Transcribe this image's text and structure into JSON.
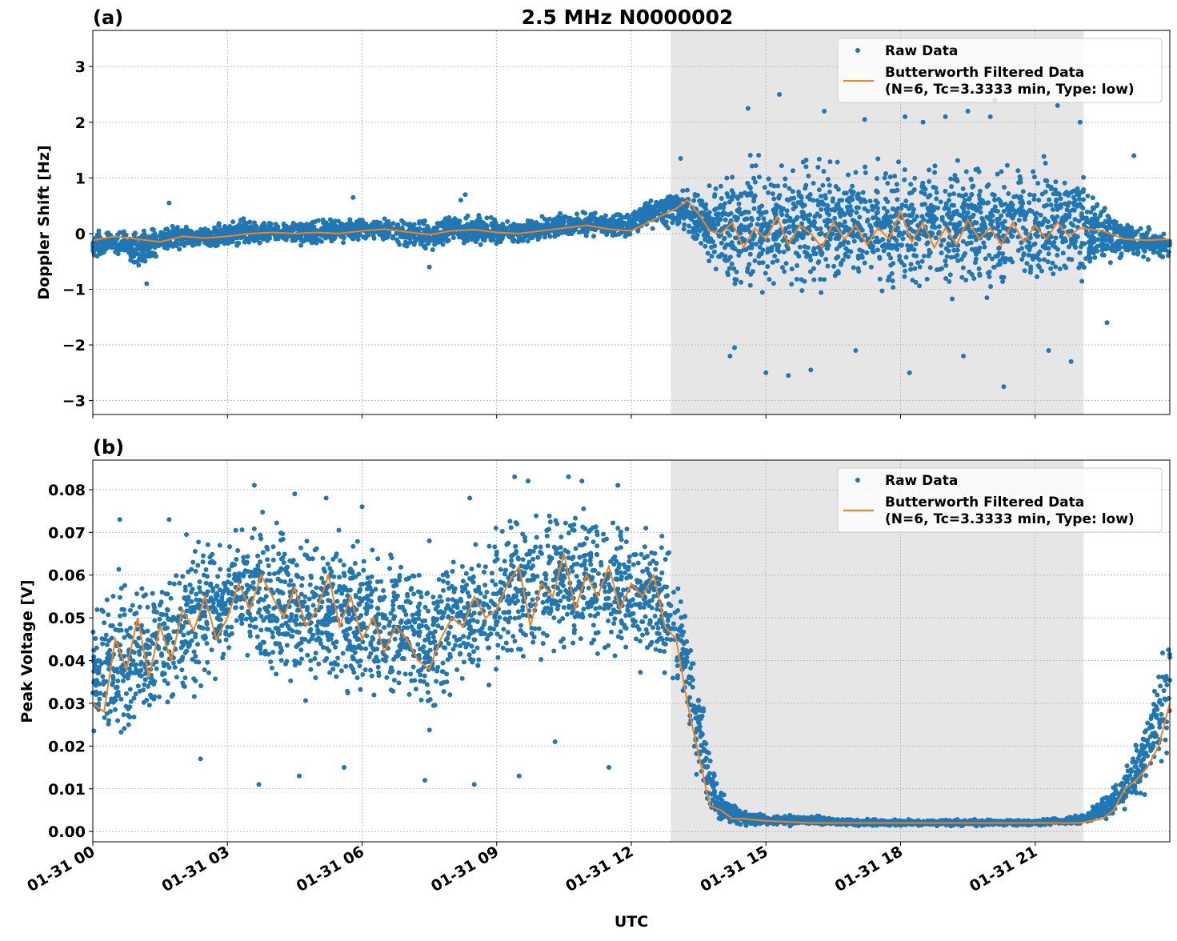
{
  "chart_data": [
    {
      "type": "scatter+line",
      "panel_label": "(a)",
      "title": "2.5 MHz N0000002",
      "xlabel": "",
      "ylabel": "Doppler Shift [Hz]",
      "x_unit": "hours since 01-31 00 UTC",
      "xlim": [
        0,
        24
      ],
      "ylim": [
        -3.25,
        3.65
      ],
      "yticks": [
        -3,
        -2,
        -1,
        0,
        1,
        2,
        3
      ],
      "ytick_labels": [
        "−3",
        "−2",
        "−1",
        "0",
        "1",
        "2",
        "3"
      ],
      "grid": true,
      "legend_position": "top-right",
      "shaded_span": [
        12.88,
        22.08
      ],
      "legend": [
        "Raw Data",
        "Butterworth Filtered Data",
        "(N=6, Tc=3.3333 min, Type: low)"
      ],
      "raw_envelope": {
        "x": [
          0,
          0.5,
          1,
          1.5,
          2,
          2.5,
          3,
          3.5,
          4,
          4.5,
          5,
          5.5,
          6,
          6.5,
          7,
          7.5,
          8,
          8.5,
          9,
          9.5,
          10,
          10.5,
          11,
          11.5,
          12,
          12.5,
          13,
          13.5,
          14,
          14.5,
          15,
          16,
          17,
          18,
          19,
          20,
          21,
          22,
          22.5,
          23,
          23.5,
          24
        ],
        "lower": [
          -0.5,
          -0.4,
          -0.7,
          -0.4,
          -0.3,
          -0.3,
          -0.3,
          -0.25,
          -0.2,
          -0.25,
          -0.25,
          -0.2,
          -0.2,
          -0.2,
          -0.3,
          -0.4,
          -0.2,
          -0.25,
          -0.25,
          -0.2,
          -0.15,
          -0.1,
          -0.1,
          -0.1,
          -0.1,
          0.05,
          0.05,
          -0.3,
          -1.1,
          -1.3,
          -1.3,
          -1.3,
          -1.3,
          -1.4,
          -1.3,
          -1.4,
          -1.2,
          -1.1,
          -0.6,
          -0.5,
          -0.5,
          -0.5
        ],
        "upper": [
          0.1,
          0.1,
          0.1,
          0.15,
          0.2,
          0.2,
          0.25,
          0.3,
          0.3,
          0.3,
          0.3,
          0.3,
          0.35,
          0.35,
          0.3,
          0.25,
          0.4,
          0.4,
          0.3,
          0.3,
          0.35,
          0.4,
          0.45,
          0.4,
          0.45,
          0.7,
          0.85,
          0.9,
          1.3,
          1.5,
          1.6,
          1.6,
          1.6,
          1.65,
          1.6,
          1.6,
          1.6,
          1.4,
          0.6,
          0.3,
          0.2,
          0.1
        ]
      },
      "raw_outliers": {
        "x": [
          1.7,
          5.8,
          7.5,
          8.2,
          8.3,
          14.6,
          15.3,
          16.3,
          17.2,
          17.7,
          18.1,
          18.5,
          19.0,
          19.5,
          20.0,
          20.1,
          21.5,
          22.0,
          14.2,
          15.0,
          16.0,
          17.0,
          18.2,
          19.4,
          20.3,
          21.8,
          22.6,
          23.2,
          1.2,
          13.1,
          14.3,
          15.5,
          21.3
        ],
        "y": [
          0.55,
          0.65,
          -0.6,
          0.6,
          0.7,
          2.25,
          2.5,
          2.2,
          2.05,
          2.6,
          2.1,
          2.0,
          2.1,
          2.2,
          2.1,
          2.4,
          2.3,
          2.0,
          -2.2,
          -2.5,
          -2.45,
          -2.1,
          -2.5,
          -2.2,
          -2.75,
          -2.3,
          -1.6,
          1.4,
          -0.9,
          1.35,
          -2.05,
          -2.55,
          -2.1
        ]
      },
      "filtered": {
        "x": [
          0,
          0.5,
          1,
          1.5,
          2,
          2.5,
          3,
          3.5,
          4,
          4.5,
          5,
          5.5,
          6,
          6.5,
          7,
          7.5,
          8,
          8.5,
          9,
          9.5,
          10,
          10.5,
          11,
          11.5,
          12,
          12.5,
          13,
          13.25,
          13.5,
          13.75,
          14,
          14.25,
          14.5,
          14.75,
          15,
          15.25,
          15.5,
          15.75,
          16,
          16.25,
          16.5,
          16.75,
          17,
          17.25,
          17.5,
          17.75,
          18,
          18.25,
          18.5,
          18.75,
          19,
          19.25,
          19.5,
          19.75,
          20,
          20.25,
          20.5,
          20.75,
          21,
          21.25,
          21.5,
          21.75,
          22,
          22.5,
          23,
          23.5,
          24
        ],
        "y": [
          -0.12,
          -0.05,
          -0.1,
          -0.15,
          -0.05,
          -0.08,
          -0.05,
          0.0,
          0.02,
          0.0,
          0.02,
          0.0,
          0.05,
          0.08,
          0.03,
          -0.02,
          0.05,
          0.07,
          0.02,
          0.0,
          0.05,
          0.1,
          0.15,
          0.08,
          0.05,
          0.25,
          0.45,
          0.6,
          0.35,
          0.05,
          0.0,
          0.2,
          -0.25,
          0.1,
          -0.1,
          0.3,
          -0.2,
          0.15,
          0.0,
          -0.25,
          0.2,
          -0.1,
          0.15,
          -0.2,
          0.1,
          -0.1,
          0.4,
          -0.15,
          0.2,
          -0.25,
          0.1,
          -0.2,
          0.25,
          -0.1,
          0.1,
          -0.2,
          0.2,
          -0.15,
          0.15,
          -0.1,
          0.2,
          -0.05,
          0.1,
          0.05,
          -0.1,
          -0.12,
          -0.1
        ]
      }
    },
    {
      "type": "scatter+line",
      "panel_label": "(b)",
      "title": "",
      "xlabel": "UTC",
      "ylabel": "Peak Voltage [V]",
      "x_unit": "hours since 01-31 00 UTC",
      "xlim": [
        0,
        24
      ],
      "ylim": [
        -0.0024,
        0.0869
      ],
      "yticks": [
        0.0,
        0.01,
        0.02,
        0.03,
        0.04,
        0.05,
        0.06,
        0.07,
        0.08
      ],
      "ytick_labels": [
        "0.00",
        "0.01",
        "0.02",
        "0.03",
        "0.04",
        "0.05",
        "0.06",
        "0.07",
        "0.08"
      ],
      "xticks": [
        0,
        3,
        6,
        9,
        12,
        15,
        18,
        21
      ],
      "xtick_labels": [
        "01-31 00",
        "01-31 03",
        "01-31 06",
        "01-31 09",
        "01-31 12",
        "01-31 15",
        "01-31 18",
        "01-31 21"
      ],
      "grid": true,
      "legend_position": "top-right",
      "shaded_span": [
        12.88,
        22.08
      ],
      "legend": [
        "Raw Data",
        "Butterworth Filtered Data",
        "(N=6, Tc=3.3333 min, Type: low)"
      ],
      "raw_envelope": {
        "x": [
          0,
          0.5,
          1,
          1.5,
          2,
          2.5,
          3,
          3.5,
          4,
          4.5,
          5,
          5.5,
          6,
          6.5,
          7,
          7.5,
          8,
          8.5,
          9,
          9.5,
          10,
          10.5,
          11,
          11.5,
          12,
          12.5,
          13,
          13.25,
          13.5,
          13.75,
          14,
          14.5,
          15,
          16,
          17,
          18,
          19,
          20,
          21,
          22,
          22.5,
          23,
          23.5,
          24
        ],
        "lower": [
          0.015,
          0.018,
          0.02,
          0.025,
          0.028,
          0.03,
          0.032,
          0.033,
          0.03,
          0.03,
          0.028,
          0.028,
          0.027,
          0.027,
          0.025,
          0.022,
          0.028,
          0.03,
          0.03,
          0.033,
          0.035,
          0.038,
          0.038,
          0.037,
          0.037,
          0.035,
          0.03,
          0.02,
          0.01,
          0.003,
          0.0015,
          0.0012,
          0.0012,
          0.0012,
          0.0012,
          0.0012,
          0.0012,
          0.0012,
          0.0012,
          0.0015,
          0.002,
          0.004,
          0.008,
          0.015
        ],
        "upper": [
          0.055,
          0.065,
          0.062,
          0.065,
          0.072,
          0.073,
          0.074,
          0.078,
          0.078,
          0.076,
          0.074,
          0.073,
          0.072,
          0.07,
          0.068,
          0.065,
          0.07,
          0.072,
          0.075,
          0.08,
          0.079,
          0.079,
          0.079,
          0.078,
          0.076,
          0.075,
          0.065,
          0.055,
          0.04,
          0.02,
          0.01,
          0.005,
          0.004,
          0.004,
          0.003,
          0.003,
          0.003,
          0.003,
          0.003,
          0.004,
          0.008,
          0.016,
          0.03,
          0.05
        ]
      },
      "raw_outliers": {
        "x": [
          0.6,
          1.7,
          3.6,
          4.5,
          5.2,
          6.0,
          7.5,
          8.4,
          9.4,
          9.7,
          10.6,
          10.9,
          11.7,
          2.4,
          3.7,
          4.6,
          5.6,
          7.4,
          8.5,
          9.5,
          10.3,
          11.5
        ],
        "y": [
          0.073,
          0.073,
          0.081,
          0.079,
          0.078,
          0.076,
          0.068,
          0.078,
          0.083,
          0.082,
          0.083,
          0.082,
          0.081,
          0.017,
          0.011,
          0.013,
          0.015,
          0.012,
          0.011,
          0.013,
          0.021,
          0.015
        ]
      },
      "filtered": {
        "x": [
          0,
          0.25,
          0.5,
          0.75,
          1,
          1.25,
          1.5,
          1.75,
          2,
          2.25,
          2.5,
          2.75,
          3,
          3.25,
          3.5,
          3.75,
          4,
          4.25,
          4.5,
          4.75,
          5,
          5.25,
          5.5,
          5.75,
          6,
          6.25,
          6.5,
          6.75,
          7,
          7.25,
          7.5,
          7.75,
          8,
          8.25,
          8.5,
          8.75,
          9,
          9.25,
          9.5,
          9.75,
          10,
          10.25,
          10.5,
          10.75,
          11,
          11.25,
          11.5,
          11.75,
          12,
          12.25,
          12.5,
          12.75,
          13,
          13.25,
          13.5,
          13.75,
          14,
          14.25,
          14.5,
          15,
          16,
          17,
          18,
          19,
          20,
          21,
          22,
          22.5,
          22.75,
          23,
          23.25,
          23.5,
          23.75,
          24
        ],
        "y": [
          0.03,
          0.028,
          0.045,
          0.038,
          0.05,
          0.036,
          0.048,
          0.04,
          0.052,
          0.047,
          0.055,
          0.045,
          0.05,
          0.058,
          0.052,
          0.06,
          0.055,
          0.05,
          0.057,
          0.048,
          0.052,
          0.06,
          0.048,
          0.055,
          0.045,
          0.05,
          0.042,
          0.048,
          0.045,
          0.04,
          0.038,
          0.045,
          0.05,
          0.048,
          0.055,
          0.05,
          0.052,
          0.058,
          0.062,
          0.048,
          0.058,
          0.055,
          0.065,
          0.052,
          0.06,
          0.055,
          0.062,
          0.052,
          0.058,
          0.055,
          0.06,
          0.048,
          0.045,
          0.03,
          0.018,
          0.006,
          0.005,
          0.003,
          0.003,
          0.0025,
          0.002,
          0.002,
          0.002,
          0.002,
          0.002,
          0.002,
          0.002,
          0.003,
          0.005,
          0.01,
          0.012,
          0.015,
          0.02,
          0.03
        ]
      }
    }
  ],
  "colors": {
    "raw": "#1f77b4",
    "filtered": "#ff7f0e",
    "shade": "#e6e6e6"
  }
}
